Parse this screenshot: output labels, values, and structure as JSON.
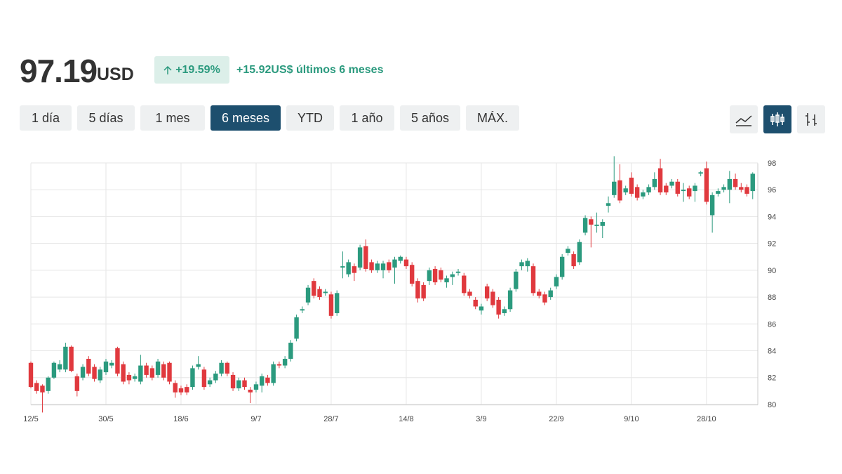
{
  "header": {
    "price": "97.19",
    "currency": "USD",
    "change_pct": "+19.59%",
    "change_abs": "+15.92",
    "change_currency": "US$",
    "change_period": "últimos 6 meses"
  },
  "ranges": [
    "1 día",
    "5 días",
    "1 mes",
    "6 meses",
    "YTD",
    "1 año",
    "5 años",
    "MÁX."
  ],
  "active_range": 3,
  "chart_data": {
    "type": "candlestick",
    "categories": [
      "12/5",
      null,
      null,
      null,
      null,
      null,
      null,
      null,
      null,
      null,
      null,
      null,
      null,
      "30/5",
      null,
      null,
      null,
      null,
      null,
      null,
      null,
      null,
      null,
      null,
      null,
      null,
      "18/6",
      null,
      null,
      null,
      null,
      null,
      null,
      null,
      null,
      null,
      null,
      null,
      null,
      "9/7",
      null,
      null,
      null,
      null,
      null,
      null,
      null,
      null,
      null,
      null,
      null,
      null,
      "28/7",
      null,
      null,
      null,
      null,
      null,
      null,
      null,
      null,
      null,
      null,
      null,
      null,
      "14/8",
      null,
      null,
      null,
      null,
      null,
      null,
      null,
      null,
      null,
      null,
      null,
      null,
      "3/9",
      null,
      null,
      null,
      null,
      null,
      null,
      null,
      null,
      null,
      null,
      null,
      null,
      "22/9",
      null,
      null,
      null,
      null,
      null,
      null,
      null,
      null,
      null,
      null,
      null,
      null,
      "9/10",
      null,
      null,
      null,
      null,
      null,
      null,
      null,
      null,
      null,
      null,
      null,
      null,
      "28/10",
      null,
      null,
      null,
      null,
      null,
      null,
      null,
      null
    ],
    "candles": [
      [
        83.1,
        83.2,
        81.2,
        81.3
      ],
      [
        81.6,
        81.8,
        80.8,
        81.0
      ],
      [
        81.4,
        81.5,
        79.4,
        80.9
      ],
      [
        81.0,
        82.1,
        80.8,
        82.0
      ],
      [
        82.0,
        83.2,
        81.9,
        83.1
      ],
      [
        82.6,
        83.3,
        82.4,
        83.0
      ],
      [
        82.6,
        84.6,
        82.4,
        84.3
      ],
      [
        84.3,
        84.4,
        82.4,
        82.5
      ],
      [
        82.1,
        82.3,
        80.6,
        81.0
      ],
      [
        82.0,
        83.0,
        81.8,
        82.8
      ],
      [
        83.4,
        83.6,
        82.1,
        82.3
      ],
      [
        82.8,
        83.0,
        81.7,
        81.9
      ],
      [
        81.8,
        82.8,
        81.6,
        82.6
      ],
      [
        82.4,
        83.4,
        82.2,
        83.2
      ],
      [
        82.9,
        83.3,
        82.7,
        83.1
      ],
      [
        84.2,
        84.3,
        82.1,
        82.3
      ],
      [
        83.0,
        83.2,
        81.5,
        81.7
      ],
      [
        82.2,
        82.4,
        81.5,
        81.8
      ],
      [
        81.9,
        82.3,
        81.7,
        82.1
      ],
      [
        81.7,
        83.7,
        81.5,
        82.9
      ],
      [
        82.9,
        83.1,
        82.0,
        82.2
      ],
      [
        82.7,
        82.9,
        81.8,
        82.0
      ],
      [
        82.2,
        83.4,
        82.0,
        83.2
      ],
      [
        83.0,
        83.2,
        81.8,
        82.0
      ],
      [
        83.1,
        83.2,
        81.5,
        81.7
      ],
      [
        81.6,
        81.8,
        80.5,
        80.9
      ],
      [
        81.2,
        81.4,
        80.7,
        80.9
      ],
      [
        81.3,
        81.5,
        80.7,
        80.9
      ],
      [
        81.3,
        82.9,
        81.1,
        82.7
      ],
      [
        82.8,
        83.6,
        82.6,
        83.0
      ],
      [
        82.6,
        82.8,
        81.1,
        81.3
      ],
      [
        81.5,
        82.0,
        81.3,
        81.8
      ],
      [
        81.8,
        82.5,
        81.6,
        82.3
      ],
      [
        82.3,
        83.3,
        82.1,
        83.1
      ],
      [
        83.1,
        83.2,
        82.1,
        82.3
      ],
      [
        82.2,
        82.4,
        81.0,
        81.2
      ],
      [
        81.2,
        82.0,
        81.0,
        81.8
      ],
      [
        81.8,
        82.0,
        81.1,
        81.3
      ],
      [
        81.1,
        81.3,
        80.1,
        80.9
      ],
      [
        81.1,
        81.7,
        80.9,
        81.5
      ],
      [
        81.4,
        82.3,
        80.9,
        82.1
      ],
      [
        82.0,
        82.2,
        81.4,
        81.6
      ],
      [
        81.6,
        83.2,
        81.4,
        83.0
      ],
      [
        83.0,
        83.2,
        82.7,
        82.9
      ],
      [
        82.9,
        83.6,
        82.7,
        83.4
      ],
      [
        83.4,
        84.8,
        83.2,
        84.6
      ],
      [
        84.9,
        86.7,
        84.7,
        86.5
      ],
      [
        87.0,
        87.3,
        86.8,
        87.1
      ],
      [
        87.6,
        88.9,
        87.4,
        88.7
      ],
      [
        89.2,
        89.4,
        87.9,
        88.1
      ],
      [
        88.6,
        88.8,
        87.8,
        88.0
      ],
      [
        88.3,
        88.6,
        88.1,
        88.4
      ],
      [
        88.2,
        88.4,
        86.4,
        86.6
      ],
      [
        86.8,
        88.5,
        86.6,
        88.3
      ],
      [
        90.2,
        91.4,
        89.4,
        90.3
      ],
      [
        89.7,
        90.8,
        89.5,
        90.6
      ],
      [
        90.3,
        90.5,
        89.2,
        89.8
      ],
      [
        90.2,
        91.9,
        90.0,
        91.7
      ],
      [
        91.8,
        92.3,
        89.9,
        90.1
      ],
      [
        90.6,
        90.8,
        89.8,
        90.0
      ],
      [
        90.0,
        90.7,
        89.8,
        90.5
      ],
      [
        90.0,
        90.7,
        89.4,
        90.5
      ],
      [
        90.6,
        90.8,
        89.8,
        90.0
      ],
      [
        90.2,
        91.0,
        89.0,
        90.8
      ],
      [
        90.7,
        91.1,
        90.5,
        91.0
      ],
      [
        90.8,
        91.0,
        90.1,
        90.3
      ],
      [
        90.4,
        90.6,
        88.8,
        89.0
      ],
      [
        89.2,
        89.4,
        87.6,
        87.9
      ],
      [
        88.9,
        89.1,
        87.7,
        87.9
      ],
      [
        89.2,
        90.2,
        88.9,
        90.0
      ],
      [
        90.1,
        90.3,
        88.9,
        89.1
      ],
      [
        90.0,
        90.2,
        89.1,
        89.3
      ],
      [
        89.1,
        89.6,
        88.7,
        89.4
      ],
      [
        89.5,
        89.9,
        88.9,
        89.7
      ],
      [
        89.8,
        90.1,
        89.6,
        89.9
      ],
      [
        89.6,
        89.8,
        88.1,
        88.3
      ],
      [
        88.4,
        88.6,
        87.9,
        88.1
      ],
      [
        87.8,
        88.0,
        87.1,
        87.3
      ],
      [
        87.0,
        87.5,
        86.7,
        87.3
      ],
      [
        88.8,
        89.0,
        87.7,
        87.9
      ],
      [
        88.4,
        88.6,
        87.2,
        87.4
      ],
      [
        87.8,
        88.0,
        86.4,
        86.7
      ],
      [
        86.8,
        87.3,
        86.6,
        87.1
      ],
      [
        87.1,
        88.7,
        86.9,
        88.5
      ],
      [
        88.6,
        90.1,
        88.4,
        89.9
      ],
      [
        90.3,
        90.8,
        90.0,
        90.6
      ],
      [
        90.3,
        90.9,
        89.9,
        90.7
      ],
      [
        90.3,
        90.5,
        88.1,
        88.3
      ],
      [
        88.4,
        88.6,
        87.9,
        88.1
      ],
      [
        88.2,
        88.4,
        87.4,
        87.6
      ],
      [
        88.0,
        88.7,
        87.8,
        88.5
      ],
      [
        88.8,
        89.7,
        88.6,
        89.5
      ],
      [
        89.5,
        91.2,
        89.3,
        91.0
      ],
      [
        91.3,
        91.8,
        91.1,
        91.6
      ],
      [
        91.2,
        91.4,
        90.1,
        90.3
      ],
      [
        90.6,
        92.3,
        90.4,
        92.1
      ],
      [
        92.8,
        94.1,
        92.6,
        93.9
      ],
      [
        93.8,
        94.0,
        91.7,
        93.4
      ],
      [
        93.3,
        94.3,
        92.8,
        93.4
      ],
      [
        93.3,
        93.8,
        92.4,
        93.6
      ],
      [
        94.8,
        95.5,
        94.3,
        95.0
      ],
      [
        95.6,
        98.5,
        95.4,
        96.6
      ],
      [
        96.7,
        97.9,
        95.0,
        95.2
      ],
      [
        95.8,
        96.3,
        95.6,
        96.1
      ],
      [
        96.9,
        97.3,
        95.5,
        95.7
      ],
      [
        96.2,
        96.4,
        95.2,
        95.4
      ],
      [
        95.5,
        96.0,
        95.3,
        95.8
      ],
      [
        95.8,
        96.4,
        95.6,
        96.2
      ],
      [
        96.2,
        97.3,
        96.0,
        96.8
      ],
      [
        97.6,
        98.3,
        95.6,
        95.8
      ],
      [
        96.3,
        96.5,
        95.6,
        95.8
      ],
      [
        96.3,
        96.8,
        96.1,
        96.6
      ],
      [
        96.6,
        96.8,
        95.5,
        95.7
      ],
      [
        95.9,
        96.5,
        95.1,
        96.0
      ],
      [
        96.1,
        96.3,
        95.3,
        95.5
      ],
      [
        95.9,
        96.5,
        95.1,
        96.3
      ],
      [
        97.2,
        97.4,
        97.0,
        97.3
      ],
      [
        97.6,
        98.1,
        94.9,
        95.1
      ],
      [
        94.1,
        95.8,
        92.8,
        95.6
      ],
      [
        95.7,
        96.1,
        95.5,
        95.9
      ],
      [
        96.0,
        96.4,
        95.8,
        96.2
      ],
      [
        96.0,
        97.4,
        95.0,
        96.8
      ],
      [
        96.8,
        97.2,
        96.0,
        96.2
      ],
      [
        96.2,
        96.5,
        95.8,
        96.0
      ],
      [
        96.2,
        96.4,
        95.5,
        95.7
      ],
      [
        95.9,
        97.3,
        95.3,
        97.19
      ]
    ],
    "ylim": [
      79.6,
      98.6
    ],
    "yticks": [
      80,
      82,
      84,
      86,
      88,
      90,
      92,
      94,
      96,
      98
    ],
    "colors": {
      "up": "#2b9a7e",
      "down": "#e0393e"
    },
    "grid": true
  }
}
